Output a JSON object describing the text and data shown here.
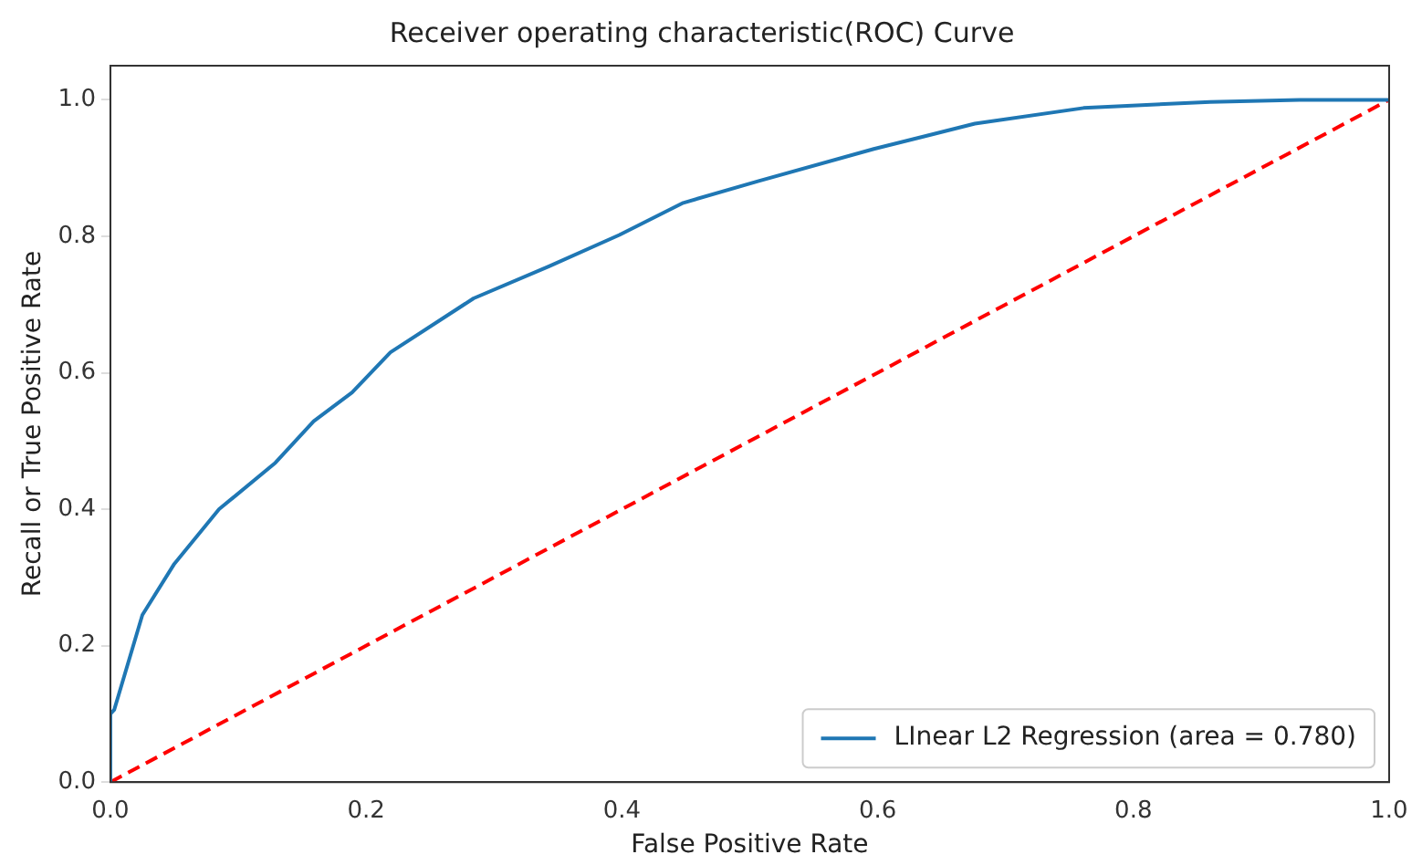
{
  "chart_data": {
    "type": "line",
    "title": "Receiver operating characteristic(ROC) Curve",
    "xlabel": "False Positive Rate",
    "ylabel": "Recall or True Positive Rate",
    "xlim": [
      0,
      1
    ],
    "ylim": [
      0,
      1.05
    ],
    "xticks": [
      {
        "value": 0,
        "label": "0.0"
      },
      {
        "value": 0.2,
        "label": "0.2"
      },
      {
        "value": 0.4,
        "label": "0.4"
      },
      {
        "value": 0.6,
        "label": "0.6"
      },
      {
        "value": 0.8,
        "label": "0.8"
      },
      {
        "value": 1,
        "label": "1.0"
      }
    ],
    "yticks": [
      {
        "value": 0,
        "label": "0.0"
      },
      {
        "value": 0.2,
        "label": "0.2"
      },
      {
        "value": 0.4,
        "label": "0.4"
      },
      {
        "value": 0.6,
        "label": "0.6"
      },
      {
        "value": 0.8,
        "label": "0.8"
      },
      {
        "value": 1,
        "label": "1.0"
      }
    ],
    "grid": false,
    "legend": "bottom right",
    "marker": "none",
    "series": [
      {
        "name": "LInear L2 Regression (area = 0.780)",
        "color": "#1f77b4",
        "line_style": "solid",
        "x": [
          0,
          0,
          0.003,
          0.025,
          0.05,
          0.085,
          0.129,
          0.159,
          0.189,
          0.219,
          0.284,
          0.343,
          0.398,
          0.448,
          0.507,
          0.597,
          0.676,
          0.761,
          0.86,
          0.93,
          1
        ],
        "values": [
          0,
          0.1,
          0.106,
          0.245,
          0.32,
          0.4,
          0.468,
          0.529,
          0.571,
          0.63,
          0.709,
          0.756,
          0.802,
          0.849,
          0.881,
          0.928,
          0.965,
          0.988,
          0.997,
          1,
          1
        ]
      },
      {
        "color": "#ff0000",
        "line_style": "dashed",
        "x": [
          0,
          1
        ],
        "values": [
          0,
          1
        ]
      }
    ]
  }
}
